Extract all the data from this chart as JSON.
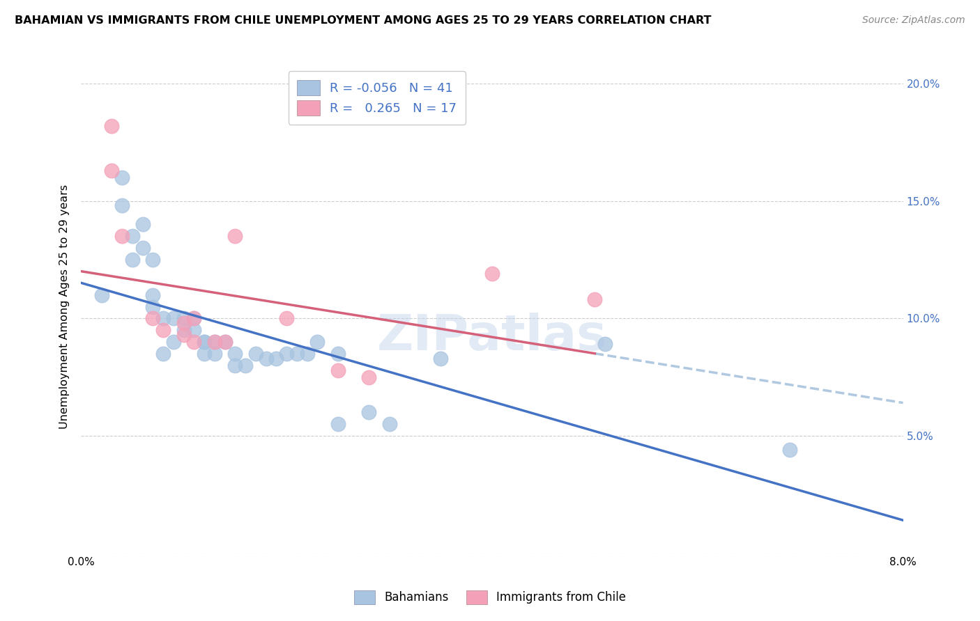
{
  "title": "BAHAMIAN VS IMMIGRANTS FROM CHILE UNEMPLOYMENT AMONG AGES 25 TO 29 YEARS CORRELATION CHART",
  "source": "Source: ZipAtlas.com",
  "ylabel": "Unemployment Among Ages 25 to 29 years",
  "xlim": [
    0.0,
    0.08
  ],
  "ylim": [
    0.0,
    0.21
  ],
  "x_ticks": [
    0.0,
    0.01,
    0.02,
    0.03,
    0.04,
    0.05,
    0.06,
    0.07,
    0.08
  ],
  "x_tick_labels": [
    "0.0%",
    "",
    "",
    "",
    "",
    "",
    "",
    "",
    "8.0%"
  ],
  "y_ticks": [
    0.0,
    0.05,
    0.1,
    0.15,
    0.2
  ],
  "y_tick_labels_right": [
    "",
    "5.0%",
    "10.0%",
    "15.0%",
    "20.0%"
  ],
  "watermark": "ZIPatlas",
  "color_bahamian": "#a8c4e0",
  "color_chile": "#f4a0b8",
  "line_color_bahamian": "#4472c4",
  "line_color_chile": "#d4607a",
  "trend_dashed_color": "#b0c8e0",
  "bahamian_x": [
    0.002,
    0.004,
    0.004,
    0.005,
    0.005,
    0.006,
    0.006,
    0.007,
    0.007,
    0.007,
    0.008,
    0.008,
    0.009,
    0.009,
    0.01,
    0.01,
    0.011,
    0.011,
    0.012,
    0.012,
    0.012,
    0.013,
    0.013,
    0.014,
    0.015,
    0.015,
    0.016,
    0.017,
    0.018,
    0.019,
    0.02,
    0.021,
    0.022,
    0.023,
    0.025,
    0.025,
    0.028,
    0.03,
    0.035,
    0.051,
    0.069
  ],
  "bahamian_y": [
    0.11,
    0.16,
    0.148,
    0.135,
    0.125,
    0.14,
    0.13,
    0.125,
    0.11,
    0.105,
    0.1,
    0.085,
    0.1,
    0.09,
    0.1,
    0.095,
    0.1,
    0.095,
    0.09,
    0.09,
    0.085,
    0.09,
    0.085,
    0.09,
    0.085,
    0.08,
    0.08,
    0.085,
    0.083,
    0.083,
    0.085,
    0.085,
    0.085,
    0.09,
    0.085,
    0.055,
    0.06,
    0.055,
    0.083,
    0.089,
    0.044
  ],
  "chile_x": [
    0.003,
    0.003,
    0.004,
    0.007,
    0.008,
    0.01,
    0.01,
    0.011,
    0.011,
    0.013,
    0.014,
    0.015,
    0.02,
    0.025,
    0.028,
    0.04,
    0.05
  ],
  "chile_y": [
    0.182,
    0.163,
    0.135,
    0.1,
    0.095,
    0.098,
    0.093,
    0.1,
    0.09,
    0.09,
    0.09,
    0.135,
    0.1,
    0.078,
    0.075,
    0.119,
    0.108
  ],
  "bahamian_trend": [
    -13.0,
    0.095
  ],
  "chile_trend": [
    70.0,
    0.088
  ]
}
